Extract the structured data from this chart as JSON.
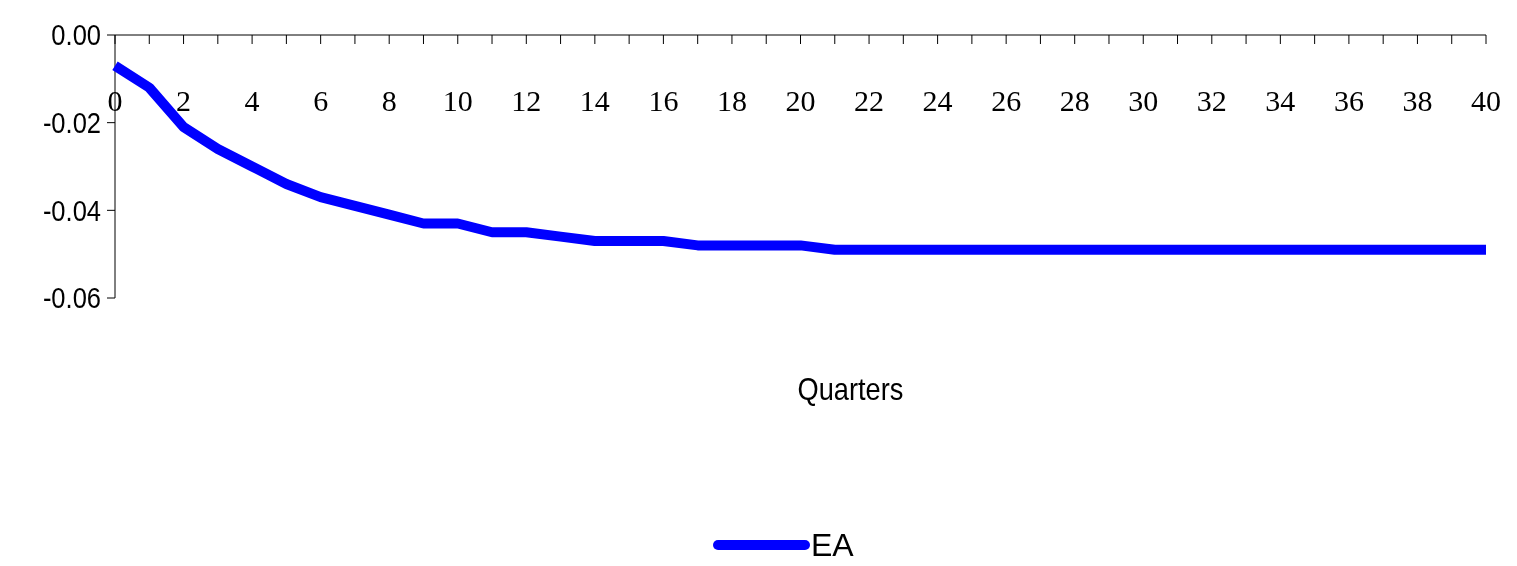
{
  "chart_data": {
    "type": "line",
    "xlabel": "Quarters",
    "x": [
      0,
      1,
      2,
      3,
      4,
      5,
      6,
      7,
      8,
      9,
      10,
      11,
      12,
      13,
      14,
      15,
      16,
      17,
      18,
      19,
      20,
      21,
      22,
      23,
      24,
      25,
      26,
      27,
      28,
      29,
      30,
      31,
      32,
      33,
      34,
      35,
      36,
      37,
      38,
      39,
      40
    ],
    "series": [
      {
        "name": "EA",
        "color": "#0000ff",
        "values": [
          -0.007,
          -0.012,
          -0.021,
          -0.026,
          -0.03,
          -0.034,
          -0.037,
          -0.039,
          -0.041,
          -0.043,
          -0.043,
          -0.045,
          -0.045,
          -0.046,
          -0.047,
          -0.047,
          -0.047,
          -0.048,
          -0.048,
          -0.048,
          -0.048,
          -0.049,
          -0.049,
          -0.049,
          -0.049,
          -0.049,
          -0.049,
          -0.049,
          -0.049,
          -0.049,
          -0.049,
          -0.049,
          -0.049,
          -0.049,
          -0.049,
          -0.049,
          -0.049,
          -0.049,
          -0.049,
          -0.049,
          -0.049
        ]
      }
    ],
    "xlim": [
      0,
      40
    ],
    "xticks": [
      0,
      {
        "value": 1,
        "label": null
      },
      2,
      {
        "value": 3,
        "label": null
      },
      4,
      {
        "value": 5,
        "label": null
      },
      6,
      {
        "value": 7,
        "label": null
      },
      8,
      {
        "value": 9,
        "label": null
      },
      10,
      {
        "value": 11,
        "label": null
      },
      12,
      {
        "value": 13,
        "label": null
      },
      14,
      {
        "value": 15,
        "label": null
      },
      16,
      {
        "value": 17,
        "label": null
      },
      18,
      {
        "value": 19,
        "label": null
      },
      20,
      {
        "value": 21,
        "label": null
      },
      22,
      {
        "value": 23,
        "label": null
      },
      24,
      {
        "value": 25,
        "label": null
      },
      26,
      {
        "value": 27,
        "label": null
      },
      28,
      {
        "value": 29,
        "label": null
      },
      30,
      {
        "value": 31,
        "label": null
      },
      32,
      {
        "value": 33,
        "label": null
      },
      34,
      {
        "value": 35,
        "label": null
      },
      36,
      {
        "value": 37,
        "label": null
      },
      38,
      {
        "value": 39,
        "label": null
      },
      40
    ],
    "ylim": [
      -0.06,
      0
    ],
    "yticks": [
      {
        "value": 0,
        "label": "0.00"
      },
      {
        "value": -0.02,
        "label": "-0.02"
      },
      {
        "value": -0.04,
        "label": "-0.04"
      },
      {
        "value": -0.06,
        "label": "-0.06"
      }
    ],
    "grid": false,
    "legend": "bottom",
    "marker": "none",
    "line_style": "solid"
  }
}
